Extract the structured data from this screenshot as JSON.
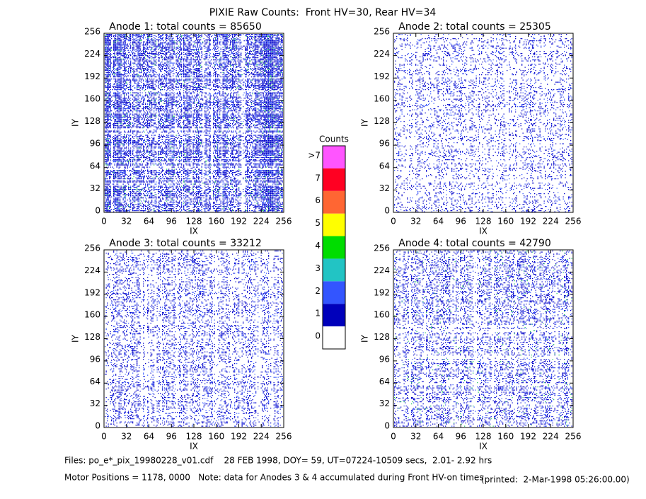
{
  "title": "PIXIE Raw Counts:  Front HV=30, Rear HV=34",
  "chart_data": [
    {
      "type": "heatmap",
      "title": "Anode 1: total counts = 85650",
      "xlabel": "IX",
      "ylabel": "IY",
      "xlim": [
        0,
        256
      ],
      "ylim": [
        0,
        256
      ],
      "xticks": [
        0,
        32,
        64,
        96,
        128,
        160,
        192,
        224,
        256
      ],
      "yticks": [
        0,
        32,
        64,
        96,
        128,
        160,
        192,
        224,
        256
      ]
    },
    {
      "type": "heatmap",
      "title": "Anode 2: total counts = 25305",
      "xlabel": "IX",
      "ylabel": "IY",
      "xlim": [
        0,
        256
      ],
      "ylim": [
        0,
        256
      ],
      "xticks": [
        0,
        32,
        64,
        96,
        128,
        160,
        192,
        224,
        256
      ],
      "yticks": [
        0,
        32,
        64,
        96,
        128,
        160,
        192,
        224,
        256
      ]
    },
    {
      "type": "heatmap",
      "title": "Anode 3: total counts = 33212",
      "xlabel": "IX",
      "ylabel": "IY",
      "xlim": [
        0,
        256
      ],
      "ylim": [
        0,
        256
      ],
      "xticks": [
        0,
        32,
        64,
        96,
        128,
        160,
        192,
        224,
        256
      ],
      "yticks": [
        0,
        32,
        64,
        96,
        128,
        160,
        192,
        224,
        256
      ]
    },
    {
      "type": "heatmap",
      "title": "Anode 4: total counts = 42790",
      "xlabel": "IX",
      "ylabel": "IY",
      "xlim": [
        0,
        256
      ],
      "ylim": [
        0,
        256
      ],
      "xticks": [
        0,
        32,
        64,
        96,
        128,
        160,
        192,
        224,
        256
      ],
      "yticks": [
        0,
        32,
        64,
        96,
        128,
        160,
        192,
        224,
        256
      ]
    }
  ],
  "colorbar": {
    "title": "Counts",
    "ticks": [
      0,
      1,
      2,
      3,
      4,
      5,
      6,
      7,
      {
        "value": 8,
        "label": ">7"
      }
    ],
    "colors": [
      "#ffffff",
      "#0000bb",
      "#3355ff",
      "#22c4c4",
      "#00dd00",
      "#ffff00",
      "#ff6633",
      "#ff0022",
      "#ff55ff"
    ]
  },
  "footer": {
    "files": "Files: po_e*_pix_19980228_v01.cdf    28 FEB 1998, DOY= 59, UT=07224-10509 secs,  2.01- 2.92 hrs",
    "motor": "Motor Positions = 1178, 0000   Note: data for Anodes 3 & 4 accumulated during Front HV-on times",
    "printed": "(printed:  2-Mar-1998 05:26:00.00)"
  }
}
